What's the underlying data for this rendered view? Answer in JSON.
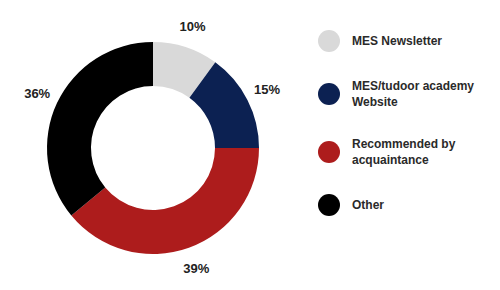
{
  "chart_data": {
    "type": "pie",
    "categories": [
      "MES Newsletter",
      "MES/tudoor academy Website",
      "Recommended by acquaintance",
      "Other"
    ],
    "values": [
      10,
      15,
      39,
      36
    ],
    "value_labels": [
      "10%",
      "15%",
      "39%",
      "36%"
    ],
    "colors": [
      "#d9d9d9",
      "#0c2152",
      "#ad1c1c",
      "#000000"
    ],
    "data_labels": true,
    "legend": "right"
  }
}
